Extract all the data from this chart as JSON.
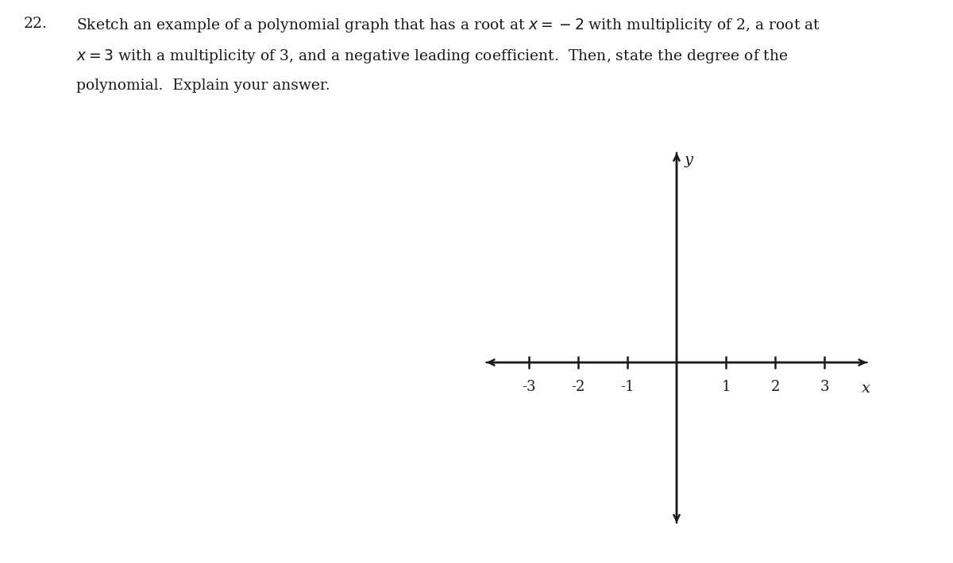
{
  "question_number": "22.",
  "line1": "Sketch an example of a polynomial graph that has a root at $x = -2$ with multiplicity of 2, a root at",
  "line2": "$x = 3$ with a multiplicity of 3, and a negative leading coefficient.  Then, state the degree of the",
  "line3": "polynomial.  Explain your answer.",
  "x_ticks": [
    -3,
    -2,
    -1,
    1,
    2,
    3
  ],
  "x_label": "x",
  "y_label": "y",
  "background_color": "#ffffff",
  "axis_color": "#1a1a1a",
  "axis_linewidth": 1.8,
  "font_size_ticks": 13,
  "font_size_label": 14,
  "font_size_question": 13.5,
  "fig_width": 12.0,
  "fig_height": 7.1
}
